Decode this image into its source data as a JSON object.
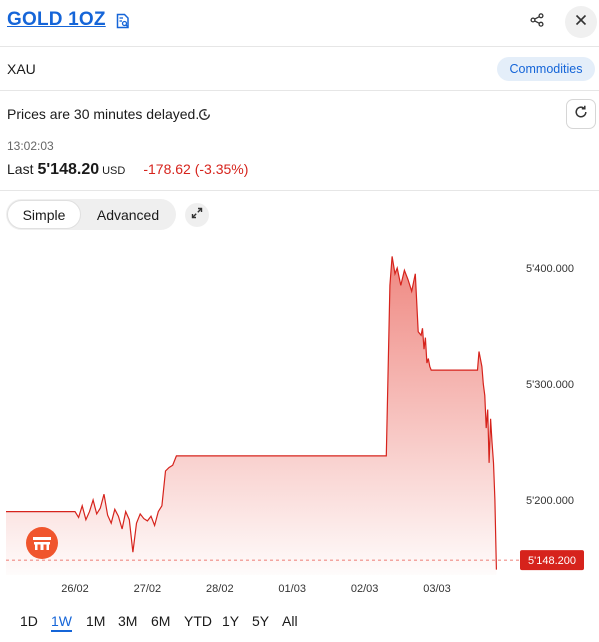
{
  "header": {
    "title": "GOLD 1OZ",
    "doc_icon": "document-search-icon",
    "share_icon": "share-icon",
    "close_icon": "close-icon"
  },
  "symbol_row": {
    "symbol": "XAU",
    "category": "Commodities"
  },
  "info": {
    "delay_text": "Prices are 30 minutes delayed.",
    "clock_icon": "clock-icon",
    "refresh_icon": "refresh-icon",
    "time": "13:02:03",
    "last_label": "Last",
    "last_price": "5'148.20",
    "currency": "USD",
    "change": "-178.62 (-3.35%)"
  },
  "view_toggle": {
    "options": [
      "Simple",
      "Advanced"
    ],
    "selected": "Simple",
    "expand_icon": "expand-icon"
  },
  "colors": {
    "accent": "#1565d8",
    "negative": "#d6231c",
    "badge_bg": "#e4eef9",
    "logo": "#f0552d"
  },
  "chart_data": {
    "type": "area",
    "x_ticks": [
      "26/02",
      "27/02",
      "28/02",
      "01/03",
      "02/03",
      "03/03"
    ],
    "y_ticks": [
      "5'400.000",
      "5'300.000",
      "5'200.000"
    ],
    "y_tick_values": [
      5400,
      5300,
      5200
    ],
    "ylim": [
      5130,
      5420
    ],
    "current_label": "5'148.200",
    "current_value": 5148.2,
    "logo_icon": "provider-logo-icon",
    "series": [
      {
        "x": [
          0,
          0.05,
          0.1,
          0.15,
          0.2,
          0.25,
          0.3,
          0.35,
          0.4,
          0.45,
          0.5,
          0.55,
          0.6,
          0.65,
          0.7,
          0.75,
          0.8,
          0.85,
          0.9,
          0.95,
          1.0,
          1.05,
          1.1,
          1.15,
          1.2,
          1.25,
          1.3,
          1.35,
          1.4,
          1.5,
          1.6,
          1.7,
          1.8,
          1.88,
          2.0,
          2.2,
          2.5,
          2.8,
          3.2,
          3.6,
          4.0,
          4.3,
          4.35,
          4.38,
          4.42,
          4.45,
          4.5,
          4.55,
          4.6,
          4.65,
          4.7,
          4.74,
          4.78,
          4.8,
          4.82,
          4.84,
          4.86,
          4.88,
          4.9,
          4.92,
          4.96,
          5.05,
          5.2,
          5.4,
          5.56,
          5.58,
          5.62,
          5.64,
          5.66,
          5.68,
          5.7,
          5.72,
          5.74,
          5.76,
          5.78,
          5.8,
          5.82
        ],
        "values": [
          5190,
          5185,
          5195,
          5183,
          5190,
          5200,
          5188,
          5193,
          5205,
          5187,
          5180,
          5192,
          5186,
          5175,
          5190,
          5183,
          5155,
          5180,
          5188,
          5184,
          5182,
          5186,
          5178,
          5190,
          5195,
          5225,
          5228,
          5230,
          5238,
          5238,
          5238,
          5238,
          5238,
          5238,
          5238,
          5238,
          5238,
          5238,
          5238,
          5238,
          5238,
          5238,
          5385,
          5410,
          5395,
          5400,
          5385,
          5398,
          5390,
          5380,
          5395,
          5345,
          5342,
          5348,
          5330,
          5340,
          5318,
          5322,
          5315,
          5312,
          5312,
          5312,
          5312,
          5312,
          5312,
          5328,
          5315,
          5300,
          5290,
          5262,
          5278,
          5232,
          5270,
          5250,
          5232,
          5200,
          5140
        ]
      }
    ]
  },
  "ranges": {
    "items": [
      "1D",
      "1W",
      "1M",
      "3M",
      "6M",
      "YTD",
      "1Y",
      "5Y",
      "All"
    ],
    "selected": "1W"
  }
}
